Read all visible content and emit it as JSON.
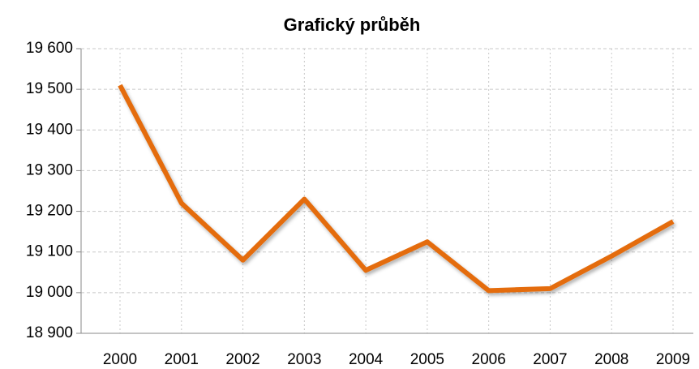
{
  "chart_data": {
    "type": "line",
    "title": "Grafický průběh",
    "categories": [
      "2000",
      "2001",
      "2002",
      "2003",
      "2004",
      "2005",
      "2006",
      "2007",
      "2008",
      "2009"
    ],
    "values": [
      19510,
      19220,
      19080,
      19230,
      19055,
      19125,
      19005,
      19010,
      19090,
      19175
    ],
    "color": "#e46c0a",
    "ylim": [
      18900,
      19600
    ],
    "yticks": [
      {
        "value": 18900,
        "label": "18 900"
      },
      {
        "value": 19000,
        "label": "19 000"
      },
      {
        "value": 19100,
        "label": "19 100"
      },
      {
        "value": 19200,
        "label": "19 200"
      },
      {
        "value": 19300,
        "label": "19 300"
      },
      {
        "value": 19400,
        "label": "19 400"
      },
      {
        "value": 19500,
        "label": "19 500"
      },
      {
        "value": 19600,
        "label": "19 600"
      }
    ],
    "grid": true
  }
}
